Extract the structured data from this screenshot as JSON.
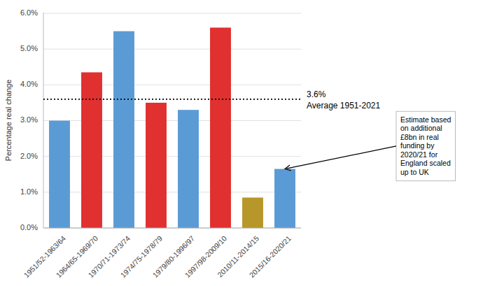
{
  "chart_data": {
    "type": "bar",
    "categories": [
      "1951/52-1963/64",
      "1964/65-1969/70",
      "1970/71-1973/74",
      "1974/75-1978/79",
      "1979/80-1996/97",
      "1997/98-2009/10",
      "2010/11-2014/15",
      "2015/16-2020/21"
    ],
    "values": [
      3.0,
      4.35,
      5.5,
      3.5,
      3.3,
      5.6,
      0.85,
      1.65
    ],
    "colors": [
      "#5b9bd5",
      "#e03030",
      "#5b9bd5",
      "#e03030",
      "#5b9bd5",
      "#e03030",
      "#b8972a",
      "#5b9bd5"
    ],
    "y_label": "Percentage real change",
    "ylim": [
      0.0,
      6.02
    ],
    "yticks": [
      {
        "value": 0.0,
        "label": "0.0%"
      },
      {
        "value": 1.0,
        "label": "1.0%"
      },
      {
        "value": 2.0,
        "label": "2.0%"
      },
      {
        "value": 3.0,
        "label": "3.0%"
      },
      {
        "value": 4.0,
        "label": "4.0%"
      },
      {
        "value": 5.0,
        "label": "5.0%"
      },
      {
        "value": 6.0,
        "label": "6.0%"
      }
    ],
    "grid": true,
    "reference_line": {
      "value": 3.6,
      "label": "3.6%",
      "text": "Average 1951-2021"
    },
    "annotations": [
      {
        "text": "Estimate based\non additional\n£8bn in real\nfunding by\n2020/21 for\nEngland scaled\nup to UK",
        "target": "2015/16-2020/21"
      }
    ]
  }
}
